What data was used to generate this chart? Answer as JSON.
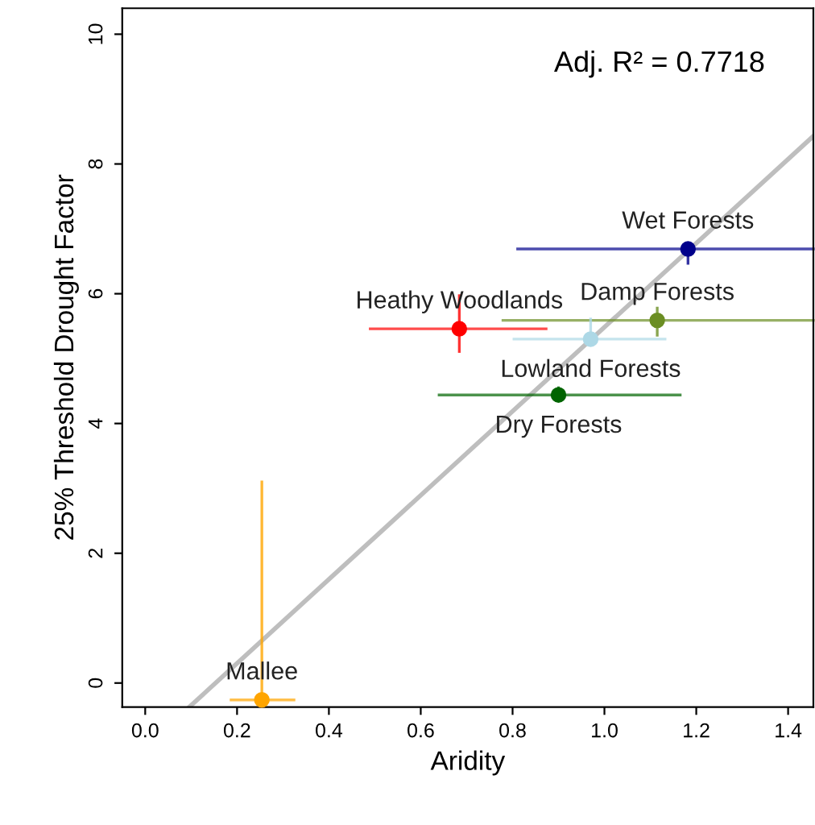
{
  "chart_data": {
    "type": "scatter",
    "xlabel": "Aridity",
    "ylabel": "25% Threshold Drought Factor",
    "annotations": [
      "Adj. R² = 0.7718"
    ],
    "xlim": [
      -0.05,
      1.455
    ],
    "ylim": [
      -0.37,
      10.4
    ],
    "xticks": [
      {
        "value": 0,
        "label": "0.0"
      },
      0.2,
      0.4,
      0.6,
      0.8,
      {
        "value": 1,
        "label": "1.0"
      },
      1.2,
      1.4
    ],
    "yticks": [
      0,
      2,
      4,
      6,
      8,
      10
    ],
    "marker": "circle",
    "legend": false,
    "grid": false,
    "series": [
      {
        "name": "Mallee",
        "color": "#ffa500",
        "x": [
          0.254
        ],
        "values": [
          -0.26
        ],
        "errors": [
          [
            -0.35,
            3.1
          ]
        ],
        "xerrors": [
          [
            0.187,
            0.324
          ]
        ]
      },
      {
        "name": "Heathy Woodlands",
        "color": "#ff0000",
        "x": [
          0.684
        ],
        "values": [
          5.46
        ],
        "errors": [
          [
            5.11,
            5.97
          ]
        ],
        "xerrors": [
          [
            0.49,
            0.873
          ]
        ]
      },
      {
        "name": "Wet Forests",
        "color": "#00008b",
        "x": [
          1.182
        ],
        "values": [
          6.69
        ],
        "errors": [
          [
            6.47,
            6.75
          ]
        ],
        "xerrors": [
          [
            0.811,
            1.455
          ]
        ]
      },
      {
        "name": "Damp Forests",
        "color": "#6b8e23",
        "x": [
          1.115
        ],
        "values": [
          5.59
        ],
        "errors": [
          [
            5.36,
            5.78
          ]
        ],
        "xerrors": [
          [
            0.779,
            1.455
          ]
        ]
      },
      {
        "name": "Lowland Forests",
        "color": "#add8e6",
        "x": [
          0.97
        ],
        "values": [
          5.3
        ],
        "errors": [
          [
            5.3,
            5.61
          ]
        ],
        "xerrors": [
          [
            0.803,
            1.132
          ]
        ]
      },
      {
        "name": "Dry Forests",
        "color": "#006400",
        "x": [
          0.9
        ],
        "values": [
          4.44
        ],
        "errors": [
          [
            4.35,
            4.55
          ]
        ],
        "xerrors": [
          [
            0.64,
            1.165
          ]
        ]
      },
      {
        "type": "line",
        "marker": "none",
        "color": "#bebebe",
        "x": [
          0.096,
          1.455
        ],
        "values": [
          -0.37,
          8.43
        ]
      }
    ]
  }
}
